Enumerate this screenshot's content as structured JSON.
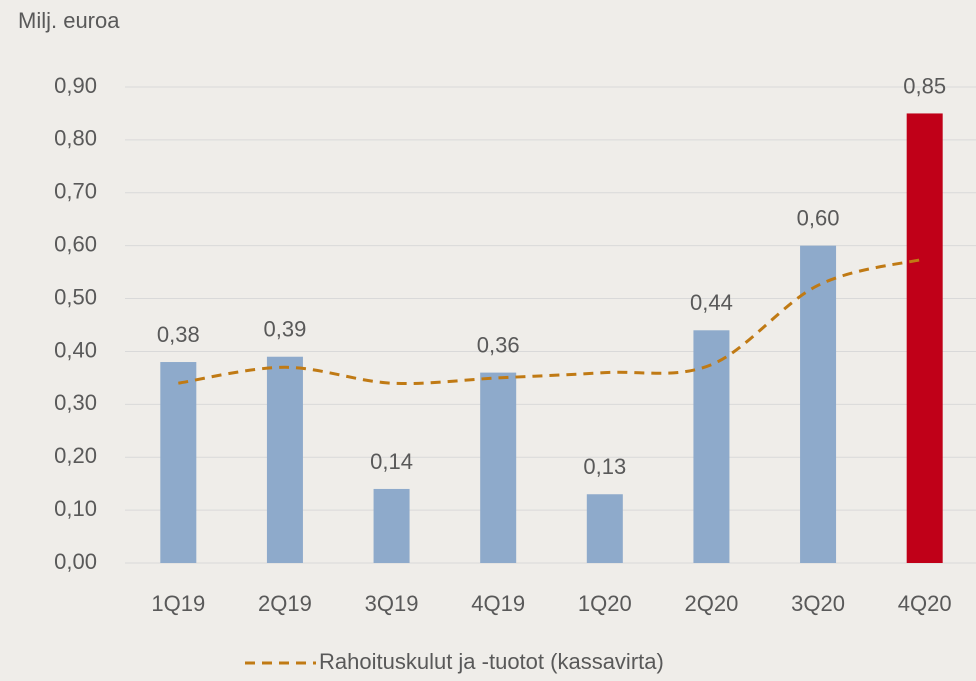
{
  "chart_data": {
    "type": "bar",
    "y_axis_label": "Milj. euroa",
    "categories": [
      "1Q19",
      "2Q19",
      "3Q19",
      "4Q19",
      "1Q20",
      "2Q20",
      "3Q20",
      "4Q20"
    ],
    "series": [
      {
        "type": "bar",
        "values": [
          0.38,
          0.39,
          0.14,
          0.36,
          0.13,
          0.44,
          0.6,
          0.85
        ],
        "value_labels": [
          "0,38",
          "0,39",
          "0,14",
          "0,36",
          "0,13",
          "0,44",
          "0,60",
          "0,85"
        ],
        "colors": [
          "#8eaacb",
          "#8eaacb",
          "#8eaacb",
          "#8eaacb",
          "#8eaacb",
          "#8eaacb",
          "#8eaacb",
          "#c00018"
        ]
      },
      {
        "type": "line",
        "name": "Rahoituskulut ja -tuotot (kassavirta)",
        "color": "#c07a14",
        "dashed": true,
        "smooth": true,
        "values": [
          0.34,
          0.37,
          0.34,
          0.35,
          0.36,
          0.375,
          0.525,
          0.575
        ]
      }
    ],
    "ylim": [
      0,
      0.9
    ],
    "yticks": [
      {
        "value": 0,
        "label": "0,00"
      },
      {
        "value": 0.1,
        "label": "0,10"
      },
      {
        "value": 0.2,
        "label": "0,20"
      },
      {
        "value": 0.3,
        "label": "0,30"
      },
      {
        "value": 0.4,
        "label": "0,40"
      },
      {
        "value": 0.5,
        "label": "0,50"
      },
      {
        "value": 0.6,
        "label": "0,60"
      },
      {
        "value": 0.7,
        "label": "0,70"
      },
      {
        "value": 0.8,
        "label": "0,80"
      },
      {
        "value": 0.9,
        "label": "0,90"
      }
    ],
    "grid": true,
    "legend": "bottom"
  }
}
